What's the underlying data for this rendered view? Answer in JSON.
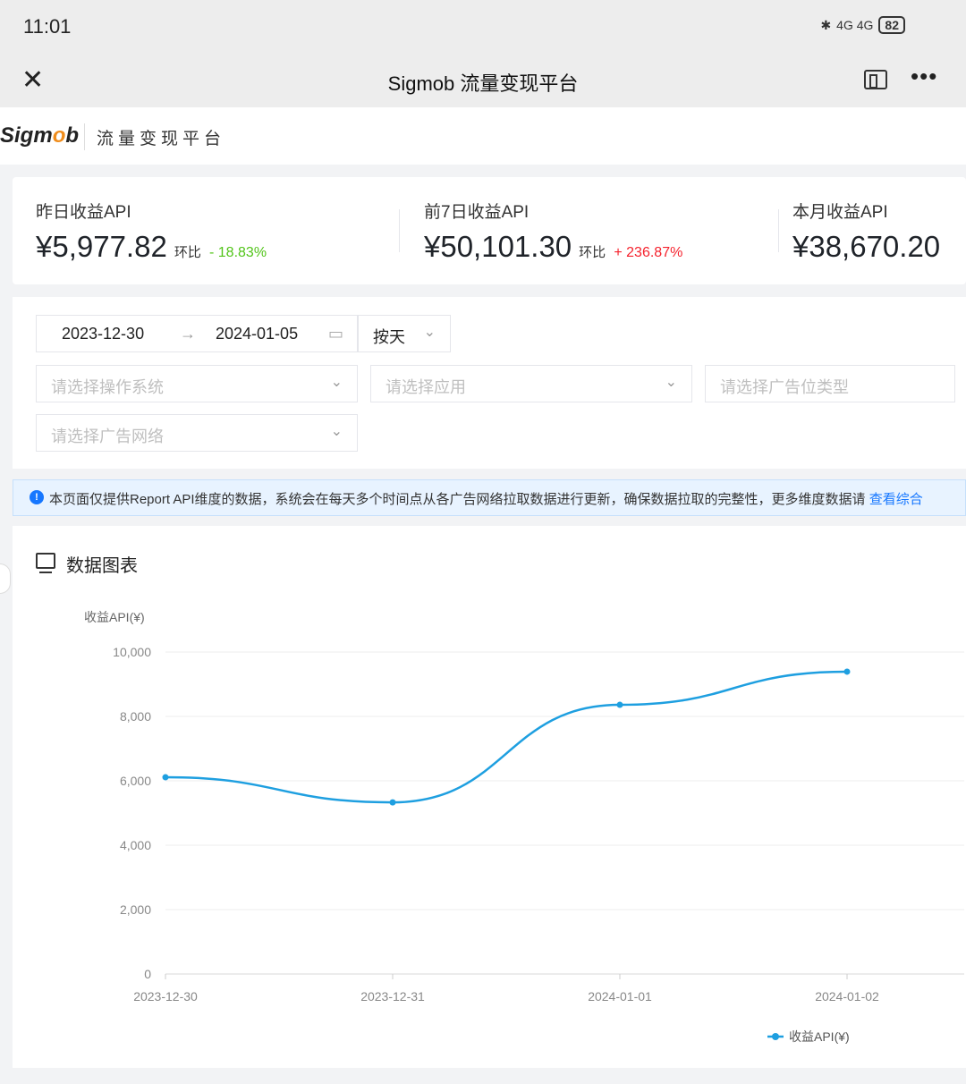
{
  "status_bar": {
    "time": "11:01",
    "signal": "4G 4G",
    "battery": "82"
  },
  "nav": {
    "title": "Sigmob 流量变现平台"
  },
  "header": {
    "logo": "Sigmob",
    "title": "流量变现平台"
  },
  "stats": [
    {
      "label": "昨日收益API",
      "value": "¥5,977.82",
      "compare_label": "环比",
      "change": "- 18.83%",
      "change_color": "#52c41a"
    },
    {
      "label": "前7日收益API",
      "value": "¥50,101.30",
      "compare_label": "环比",
      "change": "+ 236.87%",
      "change_color": "#f5222d"
    },
    {
      "label": "本月收益API",
      "value": "¥38,670.20"
    }
  ],
  "filters": {
    "start_date": "2023-12-30",
    "end_date": "2024-01-05",
    "granularity": "按天",
    "os_placeholder": "请选择操作系统",
    "app_placeholder": "请选择应用",
    "adtype_placeholder": "请选择广告位类型",
    "network_placeholder": "请选择广告网络"
  },
  "notice": {
    "text": "本页面仅提供Report API维度的数据，系统会在每天多个时间点从各广告网络拉取数据进行更新，确保数据拉取的完整性，更多维度数据请 ",
    "link": "查看综合"
  },
  "chart_card": {
    "title": "数据图表"
  },
  "chart_data": {
    "type": "line",
    "ylabel": "收益API(¥)",
    "ylim": [
      0,
      10000
    ],
    "yticks": [
      "0",
      "2,000",
      "4,000",
      "6,000",
      "8,000",
      "10,000"
    ],
    "categories": [
      "2023-12-30",
      "2023-12-31",
      "2024-01-01",
      "2024-01-02"
    ],
    "series": [
      {
        "name": "收益API(¥)",
        "values": [
          6110,
          5330,
          8360,
          9390
        ],
        "color": "#1e9fe0"
      }
    ],
    "grid": true,
    "legend": "bottom",
    "smooth": true
  }
}
